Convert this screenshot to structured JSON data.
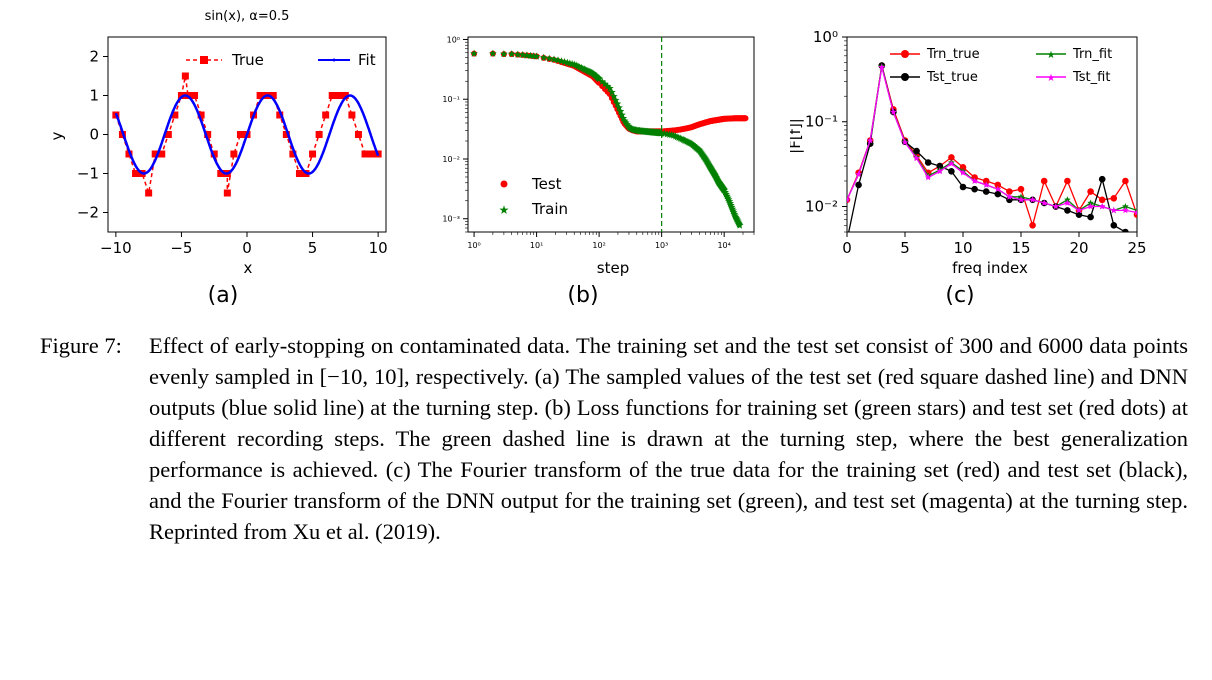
{
  "figure": {
    "panel_a": {
      "title": "sin(x), α=0.5",
      "xlabel": "x",
      "ylabel": "y",
      "sublabel": "(a)",
      "legend": [
        "True",
        "Fit"
      ]
    },
    "panel_b": {
      "xlabel": "step",
      "sublabel": "(b)",
      "legend": [
        "Test",
        "Train"
      ]
    },
    "panel_c": {
      "xlabel": "freq index",
      "ylabel": "|F[f]|",
      "sublabel": "(c)",
      "legend": [
        "Trn_true",
        "Trn_fit",
        "Tst_true",
        "Tst_fit"
      ]
    }
  },
  "colors": {
    "red": "#ff0000",
    "blue": "#0000ff",
    "green": "#008000",
    "black": "#000000",
    "magenta": "#ff00ff"
  },
  "caption": {
    "label": "Figure 7:",
    "text": "Effect of early-stopping on contaminated data. The training set and the test set consist of 300 and 6000 data points evenly sampled in [−10, 10], respectively. (a) The sampled values of the test set (red square dashed line) and DNN outputs (blue solid line) at the turning step. (b) Loss functions for training set (green stars) and test set (red dots) at different recording steps. The green dashed line is drawn at the turning step, where the best generalization performance is achieved. (c) The Fourier transform of the true data for the training set (red) and test set (black), and the Fourier transform of the DNN output for the training set (green), and test set (magenta) at the turning step. Reprinted from Xu et al. (2019)."
  },
  "chart_data": [
    {
      "type": "line",
      "title": "sin(x), α=0.5",
      "xlabel": "x",
      "ylabel": "y",
      "xlim": [
        -10.6,
        10.6
      ],
      "ylim": [
        -2.5,
        2.5
      ],
      "xticks": [
        -10,
        -5,
        0,
        5,
        10
      ],
      "yticks": [
        2,
        1,
        0,
        -1,
        -2
      ],
      "xtick_labels": [
        "−10",
        "−5",
        "0",
        "5",
        "10"
      ],
      "ytick_labels": [
        "2",
        "1",
        "0",
        "−1",
        "−2"
      ],
      "legend_position": "top",
      "series": [
        {
          "name": "True",
          "style": "red square markers, dashed",
          "x": [
            -10,
            -9.5,
            -9,
            -8.5,
            -8,
            -7.5,
            -7,
            -6.5,
            -6,
            -5.5,
            -5,
            -4.7,
            -4.5,
            -4,
            -3.5,
            -3,
            -2.5,
            -2,
            -1.5,
            -1.5,
            -1,
            -0.5,
            0,
            0.5,
            1,
            1.5,
            2,
            2.5,
            3,
            3.5,
            4,
            4.5,
            5,
            5.5,
            6,
            6.5,
            7,
            7.5,
            8,
            8.5,
            9,
            9.5,
            10
          ],
          "y": [
            0.5,
            0,
            -0.5,
            -1,
            -1,
            -1.5,
            -0.5,
            -0.5,
            0,
            0.5,
            1,
            1.5,
            1,
            1,
            0.5,
            0,
            -0.5,
            -1,
            -1,
            -1.5,
            -0.5,
            0,
            0,
            0.5,
            1,
            1,
            1,
            0.5,
            0,
            -0.5,
            -1,
            -1,
            -0.5,
            0,
            0.5,
            1,
            1,
            1,
            0.5,
            0,
            -0.5,
            -0.5,
            -0.5
          ]
        },
        {
          "name": "Fit",
          "style": "blue solid line",
          "function": "sin(x)",
          "x_range": [
            -10,
            10
          ]
        }
      ]
    },
    {
      "type": "scatter",
      "xlabel": "step",
      "xscale": "log",
      "yscale": "log",
      "xlim": [
        0.8,
        30000
      ],
      "ylim": [
        0.0006,
        1.1
      ],
      "xtick_labels": [
        "10⁰",
        "10¹",
        "10²",
        "10³",
        "10⁴"
      ],
      "ytick_labels": [
        "10⁰",
        "10⁻¹",
        "10⁻²",
        "10⁻³"
      ],
      "turning_step": 1000,
      "legend_position": "lower-left",
      "series": [
        {
          "name": "Test",
          "style": "red dots",
          "x": [
            1,
            1.5,
            2,
            3,
            4,
            6,
            10,
            20,
            40,
            80,
            150,
            200,
            250,
            300,
            350,
            400,
            500,
            700,
            1000,
            1500,
            2000,
            3000,
            4000,
            6000,
            10000,
            15000,
            22000
          ],
          "y": [
            0.58,
            0.58,
            0.58,
            0.57,
            0.57,
            0.55,
            0.52,
            0.45,
            0.36,
            0.24,
            0.12,
            0.065,
            0.04,
            0.032,
            0.03,
            0.029,
            0.029,
            0.029,
            0.029,
            0.03,
            0.031,
            0.034,
            0.038,
            0.043,
            0.047,
            0.048,
            0.048
          ]
        },
        {
          "name": "Train",
          "style": "green stars",
          "x": [
            1,
            1.5,
            2,
            3,
            4,
            6,
            10,
            20,
            40,
            80,
            150,
            200,
            250,
            300,
            350,
            400,
            500,
            700,
            1000,
            1500,
            2000,
            3000,
            4000,
            5000,
            6000,
            7000,
            8000,
            10000,
            12000,
            15000,
            18000
          ],
          "y": [
            0.58,
            0.58,
            0.58,
            0.57,
            0.57,
            0.55,
            0.52,
            0.46,
            0.38,
            0.27,
            0.15,
            0.08,
            0.045,
            0.034,
            0.031,
            0.03,
            0.029,
            0.028,
            0.027,
            0.025,
            0.022,
            0.018,
            0.014,
            0.01,
            0.0072,
            0.0055,
            0.0042,
            0.003,
            0.002,
            0.0011,
            0.00075
          ]
        }
      ]
    },
    {
      "type": "line",
      "xlabel": "freq index",
      "ylabel": "|F[f]|",
      "yscale": "log",
      "xlim": [
        0,
        25
      ],
      "ylim": [
        0.005,
        1
      ],
      "xticks": [
        0,
        5,
        10,
        15,
        20,
        25
      ],
      "xtick_labels": [
        "0",
        "5",
        "10",
        "15",
        "20",
        "25"
      ],
      "ytick_labels": [
        "10⁰",
        "10⁻¹",
        "10⁻²"
      ],
      "legend_position": "top",
      "x": [
        0,
        1,
        2,
        3,
        4,
        5,
        6,
        7,
        8,
        9,
        10,
        11,
        12,
        13,
        14,
        15,
        16,
        17,
        18,
        19,
        20,
        21,
        22,
        23,
        24,
        25
      ],
      "series": [
        {
          "name": "Trn_true",
          "color": "red",
          "values": [
            0.012,
            0.025,
            0.06,
            0.46,
            0.14,
            0.06,
            0.04,
            0.025,
            0.03,
            0.038,
            0.029,
            0.022,
            0.02,
            0.018,
            0.015,
            0.016,
            0.006,
            0.02,
            0.01,
            0.02,
            0.009,
            0.015,
            0.012,
            0.0125,
            0.02,
            0.008
          ]
        },
        {
          "name": "Trn_fit",
          "color": "green",
          "values": [
            0.012,
            0.024,
            0.06,
            0.45,
            0.13,
            0.058,
            0.038,
            0.023,
            0.027,
            0.033,
            0.026,
            0.02,
            0.018,
            0.016,
            0.013,
            0.013,
            0.012,
            0.011,
            0.01,
            0.012,
            0.009,
            0.011,
            0.01,
            0.009,
            0.01,
            0.009
          ]
        },
        {
          "name": "Tst_true",
          "color": "black",
          "values": [
            0.004,
            0.018,
            0.055,
            0.46,
            0.13,
            0.058,
            0.045,
            0.033,
            0.03,
            0.026,
            0.017,
            0.016,
            0.015,
            0.014,
            0.012,
            0.012,
            0.012,
            0.011,
            0.01,
            0.009,
            0.008,
            0.0075,
            0.021,
            0.006,
            0.005,
            0.004
          ]
        },
        {
          "name": "Tst_fit",
          "color": "magenta",
          "values": [
            0.012,
            0.024,
            0.06,
            0.44,
            0.13,
            0.057,
            0.037,
            0.022,
            0.026,
            0.032,
            0.025,
            0.02,
            0.018,
            0.016,
            0.013,
            0.012,
            0.012,
            0.011,
            0.01,
            0.011,
            0.009,
            0.01,
            0.01,
            0.009,
            0.009,
            0.0085
          ]
        }
      ]
    }
  ]
}
